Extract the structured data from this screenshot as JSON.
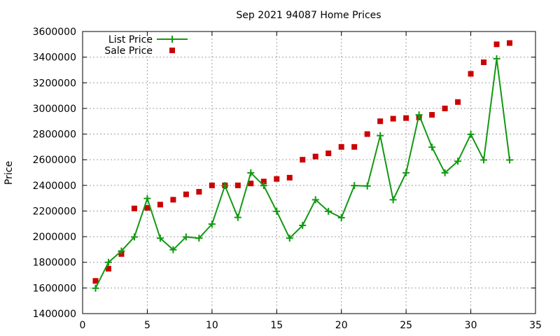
{
  "chart_data": {
    "type": "scatter",
    "title": "Sep 2021 94087 Home Prices",
    "xlabel": "",
    "ylabel": "Price",
    "xlim": [
      0,
      35
    ],
    "ylim": [
      1400000,
      3600000
    ],
    "x_ticks": [
      0,
      5,
      10,
      15,
      20,
      25,
      30,
      35
    ],
    "y_ticks": [
      1400000,
      1600000,
      1800000,
      2000000,
      2200000,
      2400000,
      2600000,
      2800000,
      3000000,
      3200000,
      3400000,
      3600000
    ],
    "grid": true,
    "legend_position": "top-left",
    "series": [
      {
        "name": "List Price",
        "style": "line-with-plus-markers",
        "color": "#119911",
        "x": [
          1,
          2,
          3,
          4,
          5,
          6,
          7,
          8,
          9,
          10,
          11,
          12,
          13,
          14,
          15,
          16,
          17,
          18,
          19,
          20,
          21,
          22,
          23,
          24,
          25,
          26,
          27,
          28,
          29,
          30,
          31,
          32,
          33
        ],
        "values": [
          1598000,
          1800000,
          1888000,
          1998000,
          2298000,
          1988000,
          1898000,
          1998000,
          1988000,
          2098000,
          2398000,
          2150000,
          2498000,
          2398000,
          2198000,
          1988000,
          2088000,
          2288000,
          2198000,
          2148000,
          2398000,
          2395000,
          2788000,
          2288000,
          2498000,
          2950000,
          2698000,
          2498000,
          2588000,
          2798000,
          2598000,
          3388000,
          2598000
        ]
      },
      {
        "name": "Sale Price",
        "style": "square-markers",
        "color": "#cc0000",
        "x": [
          1,
          2,
          3,
          4,
          5,
          6,
          7,
          8,
          9,
          10,
          11,
          12,
          13,
          14,
          15,
          16,
          17,
          18,
          19,
          20,
          21,
          22,
          23,
          24,
          25,
          26,
          27,
          28,
          29,
          30,
          31,
          32,
          33
        ],
        "values": [
          1655000,
          1750000,
          1865000,
          2220000,
          2225000,
          2250000,
          2288000,
          2330000,
          2350000,
          2400000,
          2400000,
          2400000,
          2415000,
          2430000,
          2450000,
          2460000,
          2600000,
          2625000,
          2650000,
          2700000,
          2700000,
          2800000,
          2900000,
          2920000,
          2925000,
          2930000,
          2950000,
          3000000,
          3050000,
          3270000,
          3360000,
          3500000,
          3510000
        ]
      }
    ]
  }
}
